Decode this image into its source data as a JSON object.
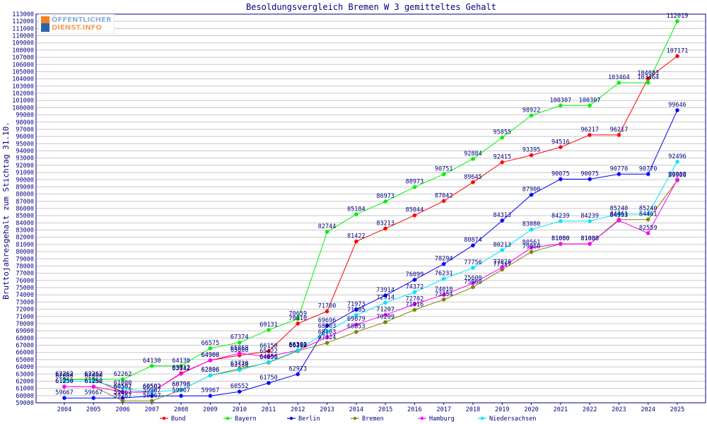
{
  "logo": {
    "line1": "ÖFFENTLICHER",
    "line2": "DIENST.INFO"
  },
  "chart_data": {
    "type": "line",
    "title": "Besoldungsvergleich Bremen W 3 gemitteltes Gehalt",
    "xlabel": "",
    "ylabel": "Bruttojahresgehalt zum Stichtag 31.10.",
    "x": [
      2004,
      2005,
      2006,
      2007,
      2008,
      2009,
      2010,
      2011,
      2012,
      2013,
      2014,
      2015,
      2016,
      2017,
      2018,
      2019,
      2020,
      2021,
      2022,
      2023,
      2024,
      2025
    ],
    "ylim": [
      59000,
      113000
    ],
    "ystep": 1000,
    "grid": true,
    "legend_position": "bottom",
    "series": [
      {
        "name": "Bund",
        "color": "#ff0000",
        "values": [
          62262,
          62262,
          60502,
          60502,
          63112,
          64900,
          65600,
          66150,
          70010,
          71700,
          81422,
          83213,
          85044,
          87042,
          89645,
          92415,
          93395,
          94516,
          96217,
          96217,
          104083,
          107171
        ],
        "labels": [
          "62262",
          "62262",
          "60502",
          "60502",
          "63112",
          "64900",
          "65600",
          "66150",
          "70010",
          "71700",
          "81422",
          "83213",
          "85044",
          "87042",
          "89645",
          "92415",
          "93395",
          "94516",
          "96217",
          "96217",
          "104083",
          "107171"
        ]
      },
      {
        "name": "Bayern",
        "color": "#00ee00",
        "values": [
          62262,
          62262,
          62262,
          64130,
          64130,
          66575,
          67374,
          69131,
          70659,
          82744,
          85184,
          86973,
          88973,
          90751,
          92884,
          95855,
          98922,
          100307,
          100307,
          103464,
          103464,
          112019
        ],
        "labels": [
          "62262",
          "62262",
          "62262",
          "64130",
          "64130",
          "66575",
          "67374",
          "69131",
          "70659",
          "82744",
          "85184",
          "86973",
          "88973",
          "90751",
          "92884",
          "95855",
          "98922",
          "100307",
          "100307",
          "103464",
          "103464",
          "112019"
        ]
      },
      {
        "name": "Berlin",
        "color": "#0000ff",
        "values": [
          59667,
          59667,
          59667,
          59967,
          59967,
          59967,
          60552,
          61750,
          62973,
          69696,
          71973,
          73914,
          76099,
          78294,
          80874,
          84313,
          87900,
          90075,
          90075,
          90770,
          90770,
          99646
        ],
        "labels": [
          "59667",
          "59667",
          "59667",
          "59967",
          "59967",
          "59967",
          "60552",
          "61750",
          "62973",
          "69696",
          "71973",
          "73914",
          "76099",
          "78294",
          "80874",
          "84313",
          "87900",
          "90075",
          "90075",
          "90770",
          "90770",
          "99646"
        ]
      },
      {
        "name": "Bremen",
        "color": "#808000",
        "values": [
          61250,
          61250,
          59267,
          59267,
          60798,
          62806,
          63720,
          64596,
          66192,
          67324,
          68853,
          70209,
          71916,
          73354,
          75060,
          77517,
          79960,
          81080,
          81080,
          84461,
          84461,
          89900
        ],
        "labels": [
          "61250",
          "61250",
          "59267",
          "59267",
          "60798",
          "62806",
          "63720",
          "64596",
          "66192",
          "67324",
          "68853",
          "70209",
          "71916",
          "73354",
          "75060",
          "77517",
          "79960",
          "81080",
          "81080",
          "84461",
          "84461",
          "89900"
        ]
      },
      {
        "name": "Hamburg",
        "color": "#ff00ff",
        "values": [
          61250,
          61250,
          60502,
          60502,
          63042,
          64900,
          65868,
          65422,
          66302,
          68103,
          69879,
          71207,
          72702,
          74010,
          75600,
          77820,
          80561,
          81080,
          81080,
          84333,
          82559,
          90000
        ],
        "labels": [
          "61250",
          "61250",
          "60502",
          "60502",
          "63042",
          "64900",
          "65868",
          "65422",
          "66302",
          "68103",
          "69879",
          "71207",
          "72702",
          "74010",
          "75600",
          "77820",
          "80561",
          "81080",
          "81080",
          "84333",
          "82559",
          "90000"
        ]
      },
      {
        "name": "Niedersachsen",
        "color": "#00e5ff",
        "values": [
          62000,
          62000,
          61000,
          60502,
          60798,
          62806,
          63538,
          64656,
          66290,
          68903,
          71185,
          72914,
          74372,
          76231,
          77756,
          80213,
          83080,
          84239,
          84239,
          85240,
          85240,
          92496
        ],
        "labels": [
          "62000",
          "62000",
          "61000",
          "60502",
          "60798",
          "62806",
          "63538",
          "64656",
          "66290",
          "68903",
          "71185",
          "72914",
          "74372",
          "76231",
          "77756",
          "80213",
          "83080",
          "84239",
          "84239",
          "85240",
          "85240",
          "92496"
        ]
      }
    ]
  }
}
